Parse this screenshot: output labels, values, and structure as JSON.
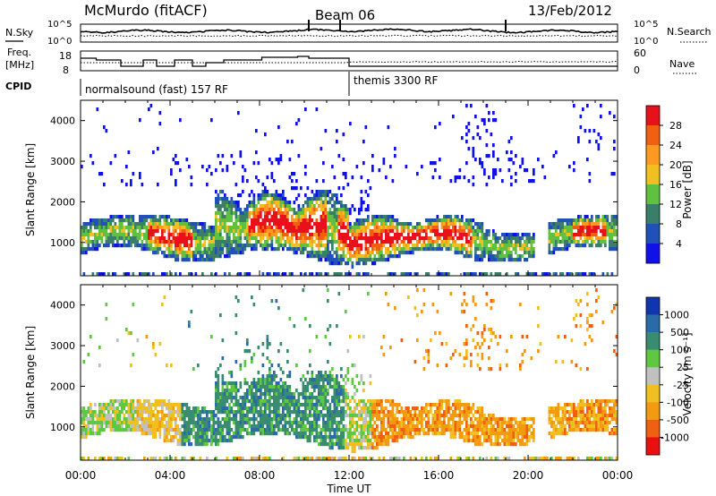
{
  "header": {
    "station": "McMurdo (fitACF)",
    "beam": "Beam 06",
    "date": "13/Feb/2012"
  },
  "noise_panel": {
    "left_label": "N.Sky",
    "right_label": "N.Search",
    "left_ticks": [
      "10^5",
      "10^0"
    ],
    "right_ticks": [
      "10^5",
      "10^0"
    ]
  },
  "freq_panel": {
    "left_label_1": "Freq.",
    "left_label_2": "[MHz]",
    "right_label": "Nave",
    "left_ticks": [
      "18",
      "8"
    ],
    "right_ticks": [
      "60",
      "0"
    ]
  },
  "cpid": {
    "label": "CPID",
    "modes": [
      {
        "name": "normalsound (fast) 157 RF",
        "start_hour": 0
      },
      {
        "name": "themis 3300 RF",
        "start_hour": 12
      }
    ]
  },
  "time_axis": {
    "label": "Time UT",
    "ticks": [
      "00:00",
      "04:00",
      "08:00",
      "12:00",
      "16:00",
      "20:00",
      "00:00"
    ]
  },
  "range_axis": {
    "label": "Slant Range [km]",
    "ticks": [
      "1000",
      "2000",
      "3000",
      "4000"
    ]
  },
  "chart_data": [
    {
      "type": "heatmap",
      "parameter": "Power",
      "colorbar_label": "Power [dB]",
      "colorbar_ticks": [
        "4",
        "8",
        "12",
        "16",
        "20",
        "24",
        "28"
      ],
      "colors": [
        "#1010e8",
        "#2050b8",
        "#3a7e6a",
        "#60c040",
        "#f0c020",
        "#ff9a20",
        "#f06010",
        "#e8101a"
      ],
      "x_range_hours": [
        0,
        24
      ],
      "y_range_km": [
        180,
        4500
      ],
      "x_label": "Time UT",
      "y_label": "Slant Range [km]"
    },
    {
      "type": "heatmap",
      "parameter": "Velocity",
      "colorbar_label": "Velocity [m s⁻¹]",
      "colorbar_ticks": [
        "1000",
        "500",
        "100",
        "25",
        "-25",
        "-100",
        "-500",
        "-1000"
      ],
      "colors": [
        "#1035b0",
        "#2a6aa8",
        "#3a8c6e",
        "#5ec840",
        "#c0c0c0",
        "#f0c020",
        "#f29a10",
        "#f06010",
        "#e81010"
      ],
      "x_range_hours": [
        0,
        24
      ],
      "y_range_km": [
        180,
        4500
      ],
      "x_label": "Time UT",
      "y_label": "Slant Range [km]"
    }
  ]
}
